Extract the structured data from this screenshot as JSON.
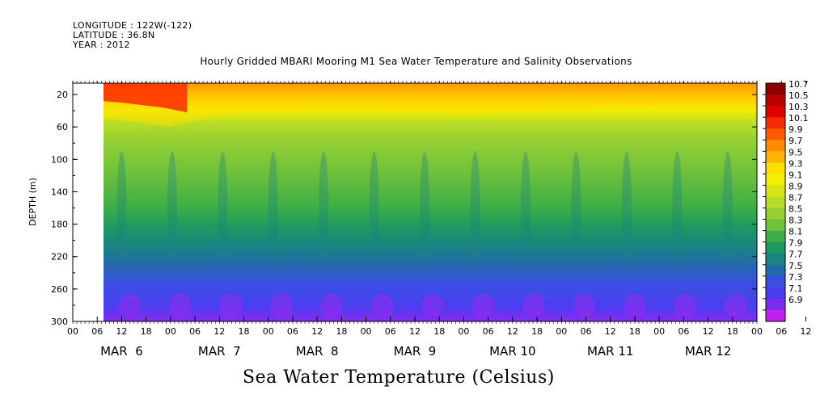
{
  "header": {
    "longitude": "LONGITUDE : 122W(-122)",
    "latitude": "LATITUDE : 36.8N",
    "year": "YEAR : 2012"
  },
  "chart_data": {
    "type": "heatmap",
    "title": "Hourly Gridded MBARI Mooring M1 Sea Water Temperature and Salinity Observations",
    "ylabel": "DEPTH (m)",
    "colorbar_title": "Sea Water Temperature (Celsius)",
    "y_ticks": [
      "20",
      "60",
      "100",
      "140",
      "180",
      "220",
      "260",
      "300"
    ],
    "ylim": [
      6,
      300
    ],
    "y_inverted": true,
    "x_hour_ticks": [
      "00",
      "06",
      "12",
      "18",
      "00",
      "06",
      "12",
      "18",
      "00",
      "06",
      "12",
      "18",
      "00",
      "06",
      "12",
      "18",
      "00",
      "06",
      "12",
      "18",
      "00",
      "06",
      "12",
      "18",
      "00",
      "06",
      "12",
      "18",
      "00",
      "06",
      "12",
      "18",
      "00",
      "06",
      "12",
      "18",
      "00",
      "06",
      "12",
      "18",
      "00",
      "06",
      "12",
      "18",
      "00"
    ],
    "x_day_labels": [
      "MAR  6",
      "MAR  7",
      "MAR  8",
      "MAR  9",
      "MAR 10",
      "MAR 11",
      "MAR 12"
    ],
    "x_range_hours": [
      "2012-03-06T00",
      "2012-03-13T00"
    ],
    "data_start_hour": "2012-03-06T07",
    "colorbar_levels": [
      "10.7",
      "10.5",
      "10.3",
      "10.1",
      "9.9",
      "9.7",
      "9.5",
      "9.3",
      "9.1",
      "8.9",
      "8.7",
      "8.5",
      "8.3",
      "8.1",
      "7.9",
      "7.7",
      "7.5",
      "7.3",
      "7.1",
      "6.9"
    ],
    "colorbar_colors": [
      "#8b0000",
      "#b80000",
      "#e00000",
      "#f52a00",
      "#ff5a00",
      "#ff8c00",
      "#ffb400",
      "#ffdf00",
      "#f4ef00",
      "#d6e614",
      "#b8dc28",
      "#96d032",
      "#70c23a",
      "#3fae46",
      "#1f9a5e",
      "#1a8580",
      "#226aa8",
      "#3a4fe2",
      "#4b3df0",
      "#7a2cf0",
      "#c020f0"
    ],
    "mixed_layer_depth_profile": [
      {
        "day": 6.3,
        "depth": 48
      },
      {
        "day": 7.0,
        "depth": 60
      },
      {
        "day": 7.5,
        "depth": 45
      },
      {
        "day": 8.0,
        "depth": 40
      },
      {
        "day": 9.0,
        "depth": 40
      },
      {
        "day": 10.0,
        "depth": 45
      },
      {
        "day": 11.0,
        "depth": 40
      },
      {
        "day": 12.0,
        "depth": 35
      },
      {
        "day": 13.0,
        "depth": 35
      }
    ]
  }
}
